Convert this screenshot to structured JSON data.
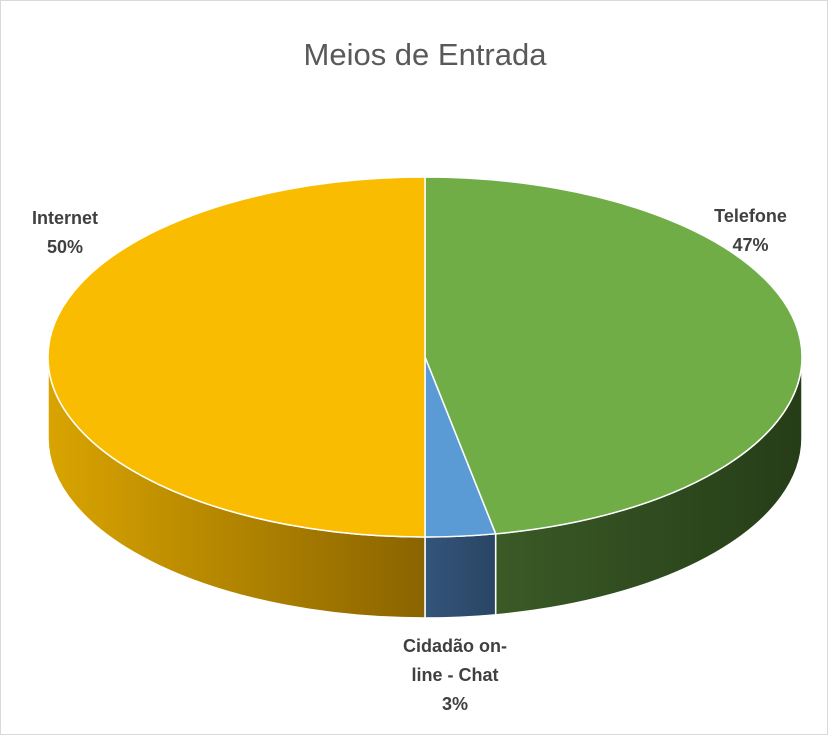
{
  "chart_data": {
    "type": "pie",
    "title": "Meios de Entrada",
    "categories": [
      "Telefone",
      "Cidadão on-line - Chat",
      "Internet"
    ],
    "values": [
      47,
      3,
      50
    ],
    "value_labels": [
      "47%",
      "3%",
      "50%"
    ],
    "colors": [
      "#70ad47",
      "#5b9bd5",
      "#f9bc00"
    ]
  }
}
